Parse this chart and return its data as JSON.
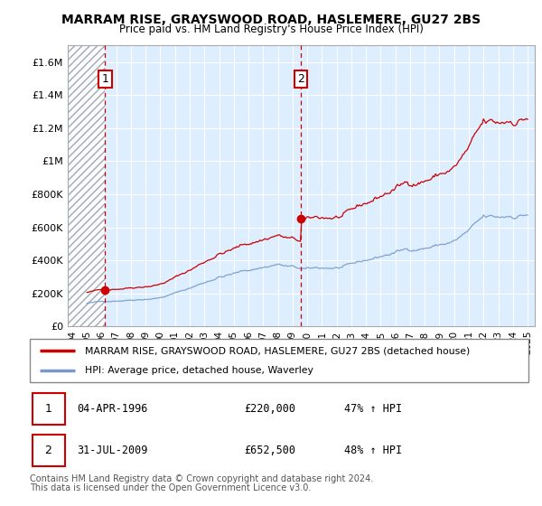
{
  "title": "MARRAM RISE, GRAYSWOOD ROAD, HASLEMERE, GU27 2BS",
  "subtitle": "Price paid vs. HM Land Registry's House Price Index (HPI)",
  "sale1_date": 1996.25,
  "sale1_price": 220000,
  "sale2_date": 2009.58,
  "sale2_price": 652500,
  "legend_line1": "MARRAM RISE, GRAYSWOOD ROAD, HASLEMERE, GU27 2BS (detached house)",
  "legend_line2": "HPI: Average price, detached house, Waverley",
  "footer1": "Contains HM Land Registry data © Crown copyright and database right 2024.",
  "footer2": "This data is licensed under the Open Government Licence v3.0.",
  "red_color": "#cc0000",
  "blue_color": "#7799cc",
  "chart_bg": "#ddeeff",
  "hatch_color": "#aaaaaa",
  "ylim": [
    0,
    1700000
  ],
  "xlim_start": 1993.7,
  "xlim_end": 2025.5,
  "yticks": [
    0,
    200000,
    400000,
    600000,
    800000,
    1000000,
    1200000,
    1400000,
    1600000
  ],
  "ytick_labels": [
    "£0",
    "£200K",
    "£400K",
    "£600K",
    "£800K",
    "£1M",
    "£1.2M",
    "£1.4M",
    "£1.6M"
  ]
}
